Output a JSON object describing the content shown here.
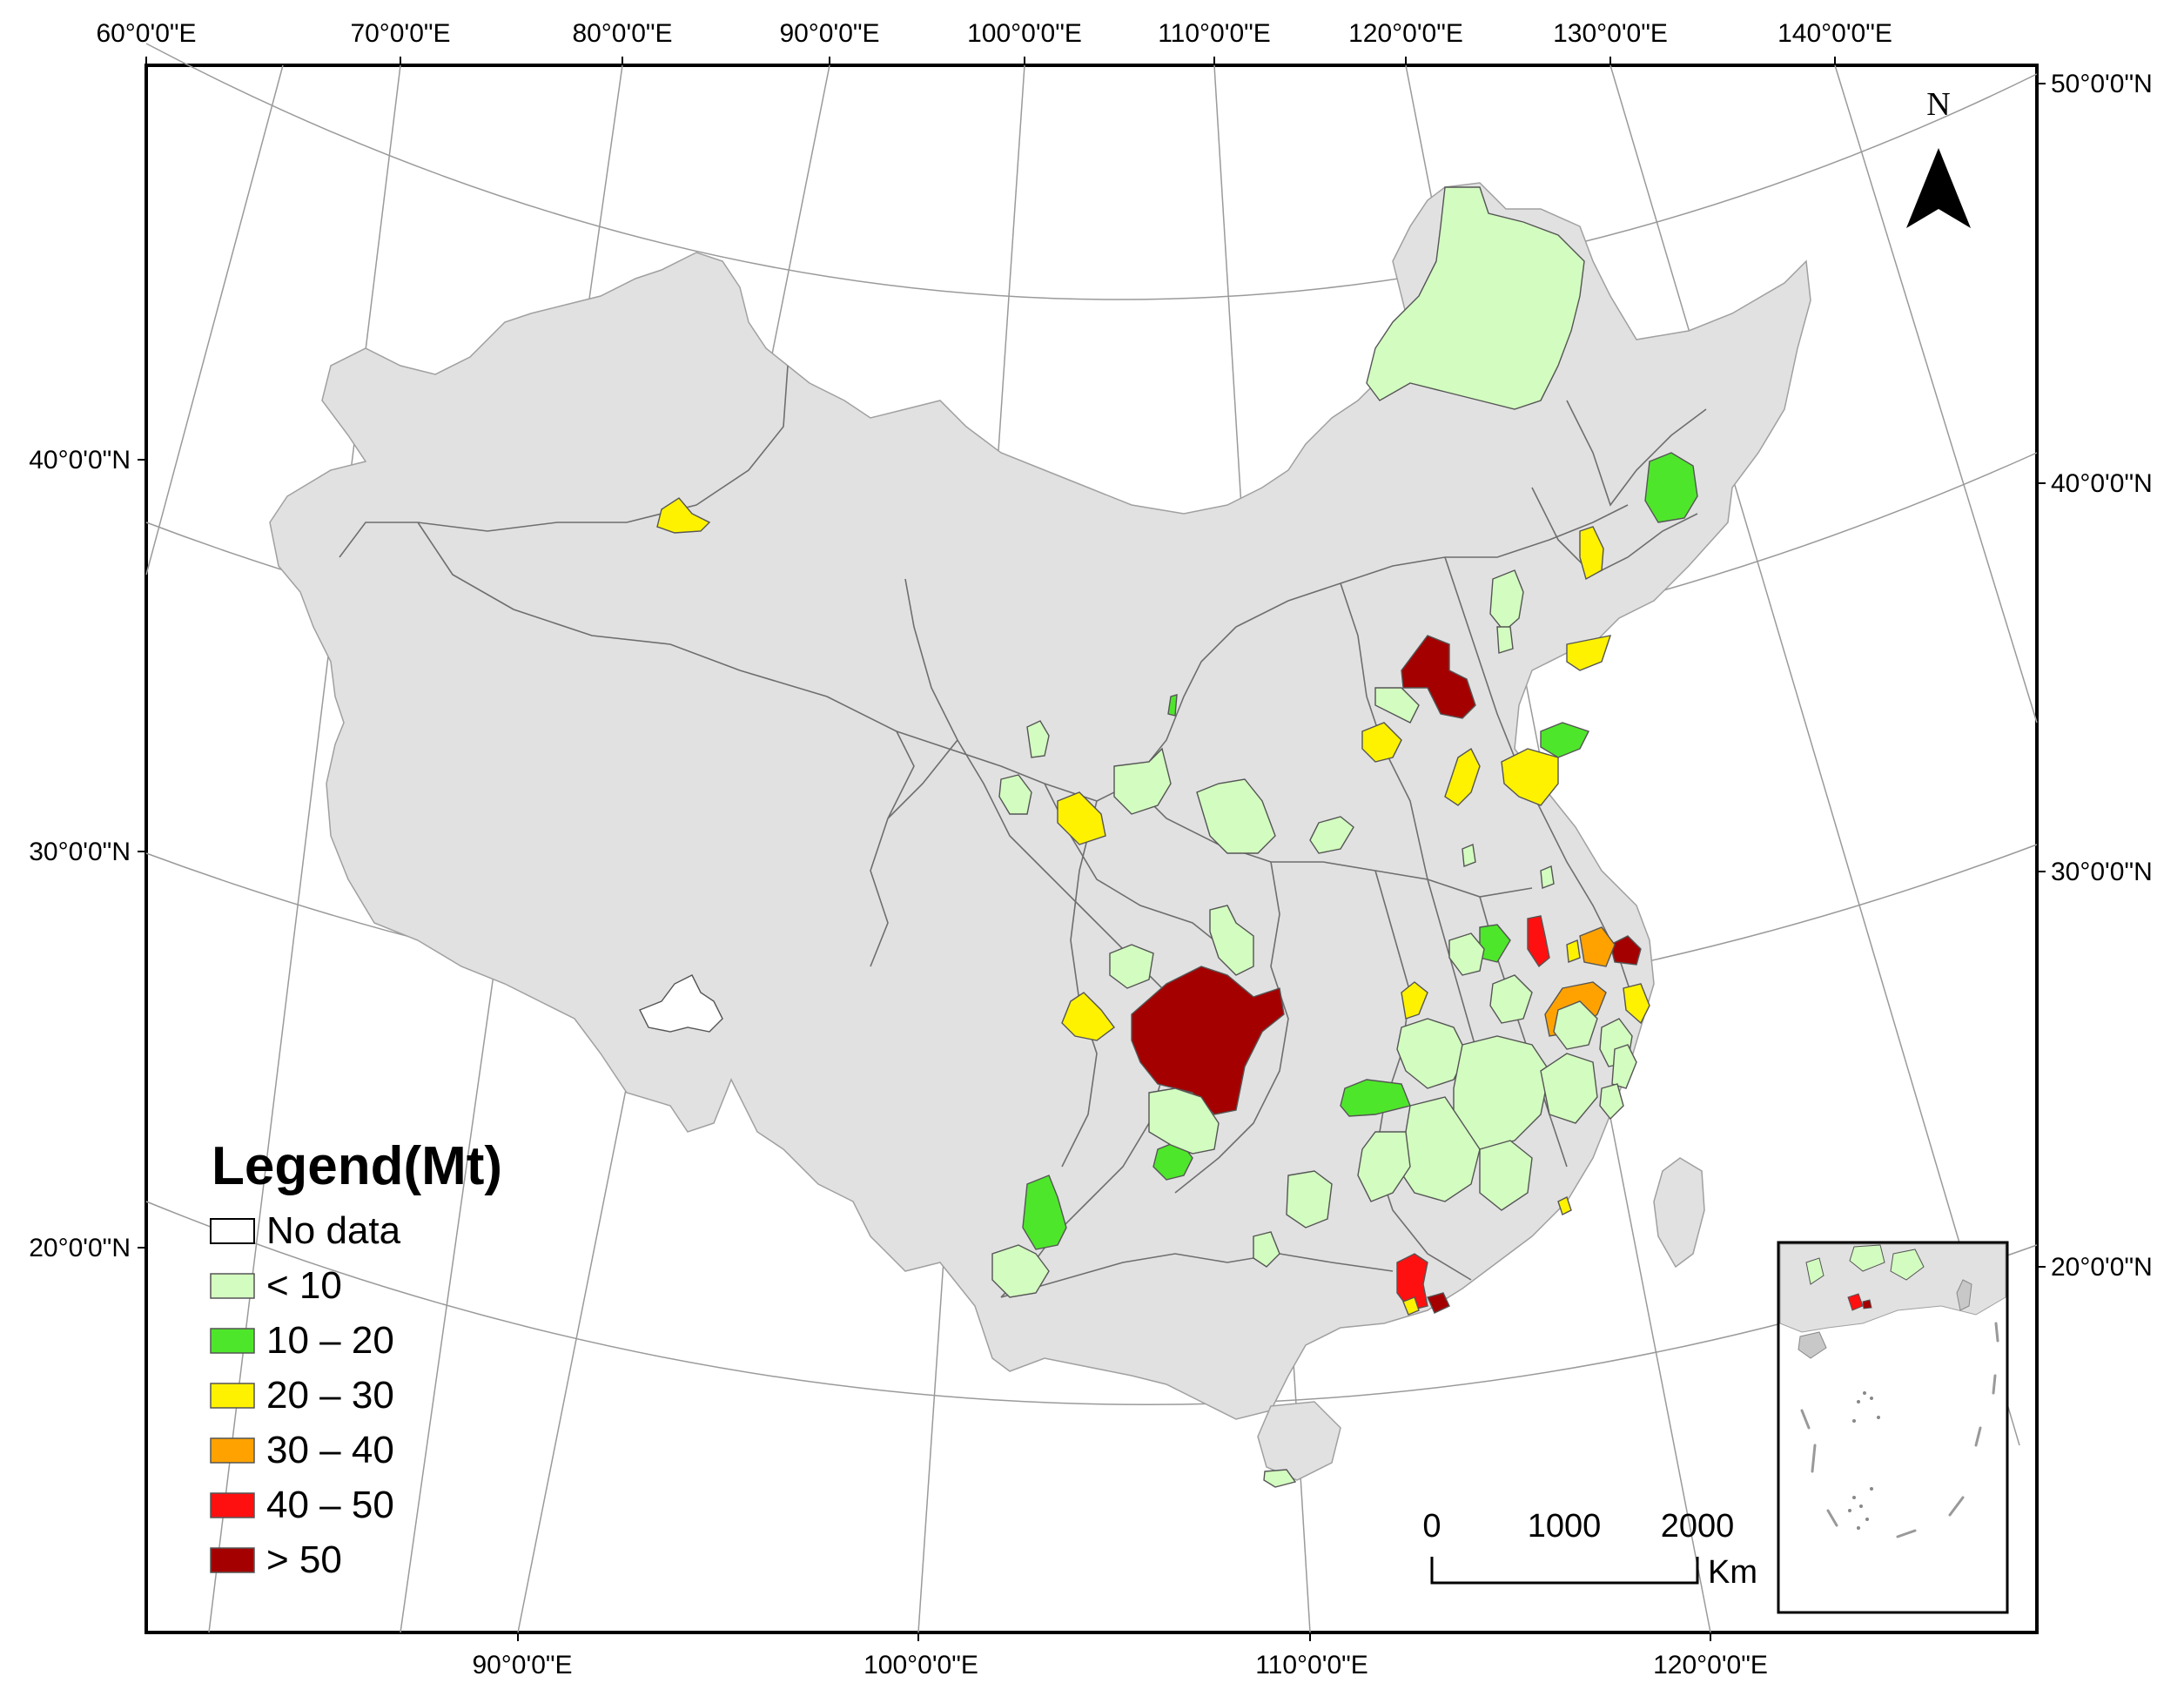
{
  "top_axis_labels": [
    "60°0'0\"E",
    "70°0'0\"E",
    "80°0'0\"E",
    "90°0'0\"E",
    "100°0'0\"E",
    "110°0'0\"E",
    "120°0'0\"E",
    "130°0'0\"E",
    "140°0'0\"E"
  ],
  "bottom_axis_labels": [
    "90°0'0\"E",
    "100°0'0\"E",
    "110°0'0\"E",
    "120°0'0\"E"
  ],
  "left_axis_labels": [
    "40°0'0\"N",
    "30°0'0\"N",
    "20°0'0\"N"
  ],
  "right_axis_labels": [
    "50°0'0\"N",
    "40°0'0\"N",
    "30°0'0\"N",
    "20°0'0\"N"
  ],
  "north_arrow": {
    "label": "N",
    "icon": "north-arrow-icon"
  },
  "legend": {
    "title": "Legend(Mt)",
    "items": [
      {
        "label": "No data",
        "color": "#ffffff"
      },
      {
        "label": "< 10",
        "color": "#d3fcc0"
      },
      {
        "label": "10 – 20",
        "color": "#4ee62b"
      },
      {
        "label": "20 – 30",
        "color": "#fff200"
      },
      {
        "label": "30 – 40",
        "color": "#ffa200"
      },
      {
        "label": "40 – 50",
        "color": "#ff1010"
      },
      {
        "label": "> 50",
        "color": "#a50000"
      }
    ]
  },
  "scale_bar": {
    "ticks": [
      "0",
      "1000",
      "2000"
    ],
    "unit": "Km"
  },
  "colors": {
    "land": "#e1e1e1",
    "border": "#6e6e6e"
  }
}
